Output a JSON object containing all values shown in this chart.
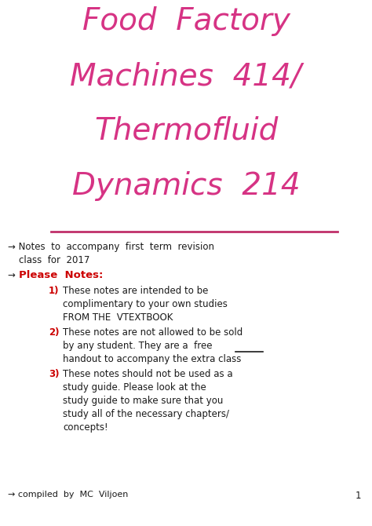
{
  "background_color": "#ffffff",
  "title_line1": "Food  Factory",
  "title_line2": "Machines  414/",
  "title_line3": "Thermofluid",
  "title_line4": "Dynamics  214",
  "title_color": "#d63384",
  "body_color": "#1a1a1a",
  "bold_color": "#cc0000",
  "num_color": "#cc0000",
  "underline_color": "#c0306a",
  "bullet1": "→ Notes  to  accompany  first  term  revision",
  "bullet1_cont": "class  for  2017",
  "please_notes": "Please  Notes:",
  "item1_num": "1)",
  "item1_l1": "These notes are intended to be",
  "item1_l2": "complimentary to your own studies",
  "item1_l3": "FROM THE  VTEXTBOOK",
  "item2_num": "2)",
  "item2_l1": "These notes are not allowed to be sold",
  "item2_l2": "by any student. They are a  free",
  "item2_l3": "handout to accompany the extra class",
  "item3_num": "3)",
  "item3_l1": "These notes should not be used as a",
  "item3_l2": "study guide. Please look at the",
  "item3_l3": "study guide to make sure that you",
  "item3_l4": "study all of the necessary chapters/",
  "item3_l5": "concepts!",
  "footer": "→ compiled  by  MC  Viljoen",
  "page_num": "1",
  "title_fontsize": 28,
  "body_fontsize": 8.5
}
